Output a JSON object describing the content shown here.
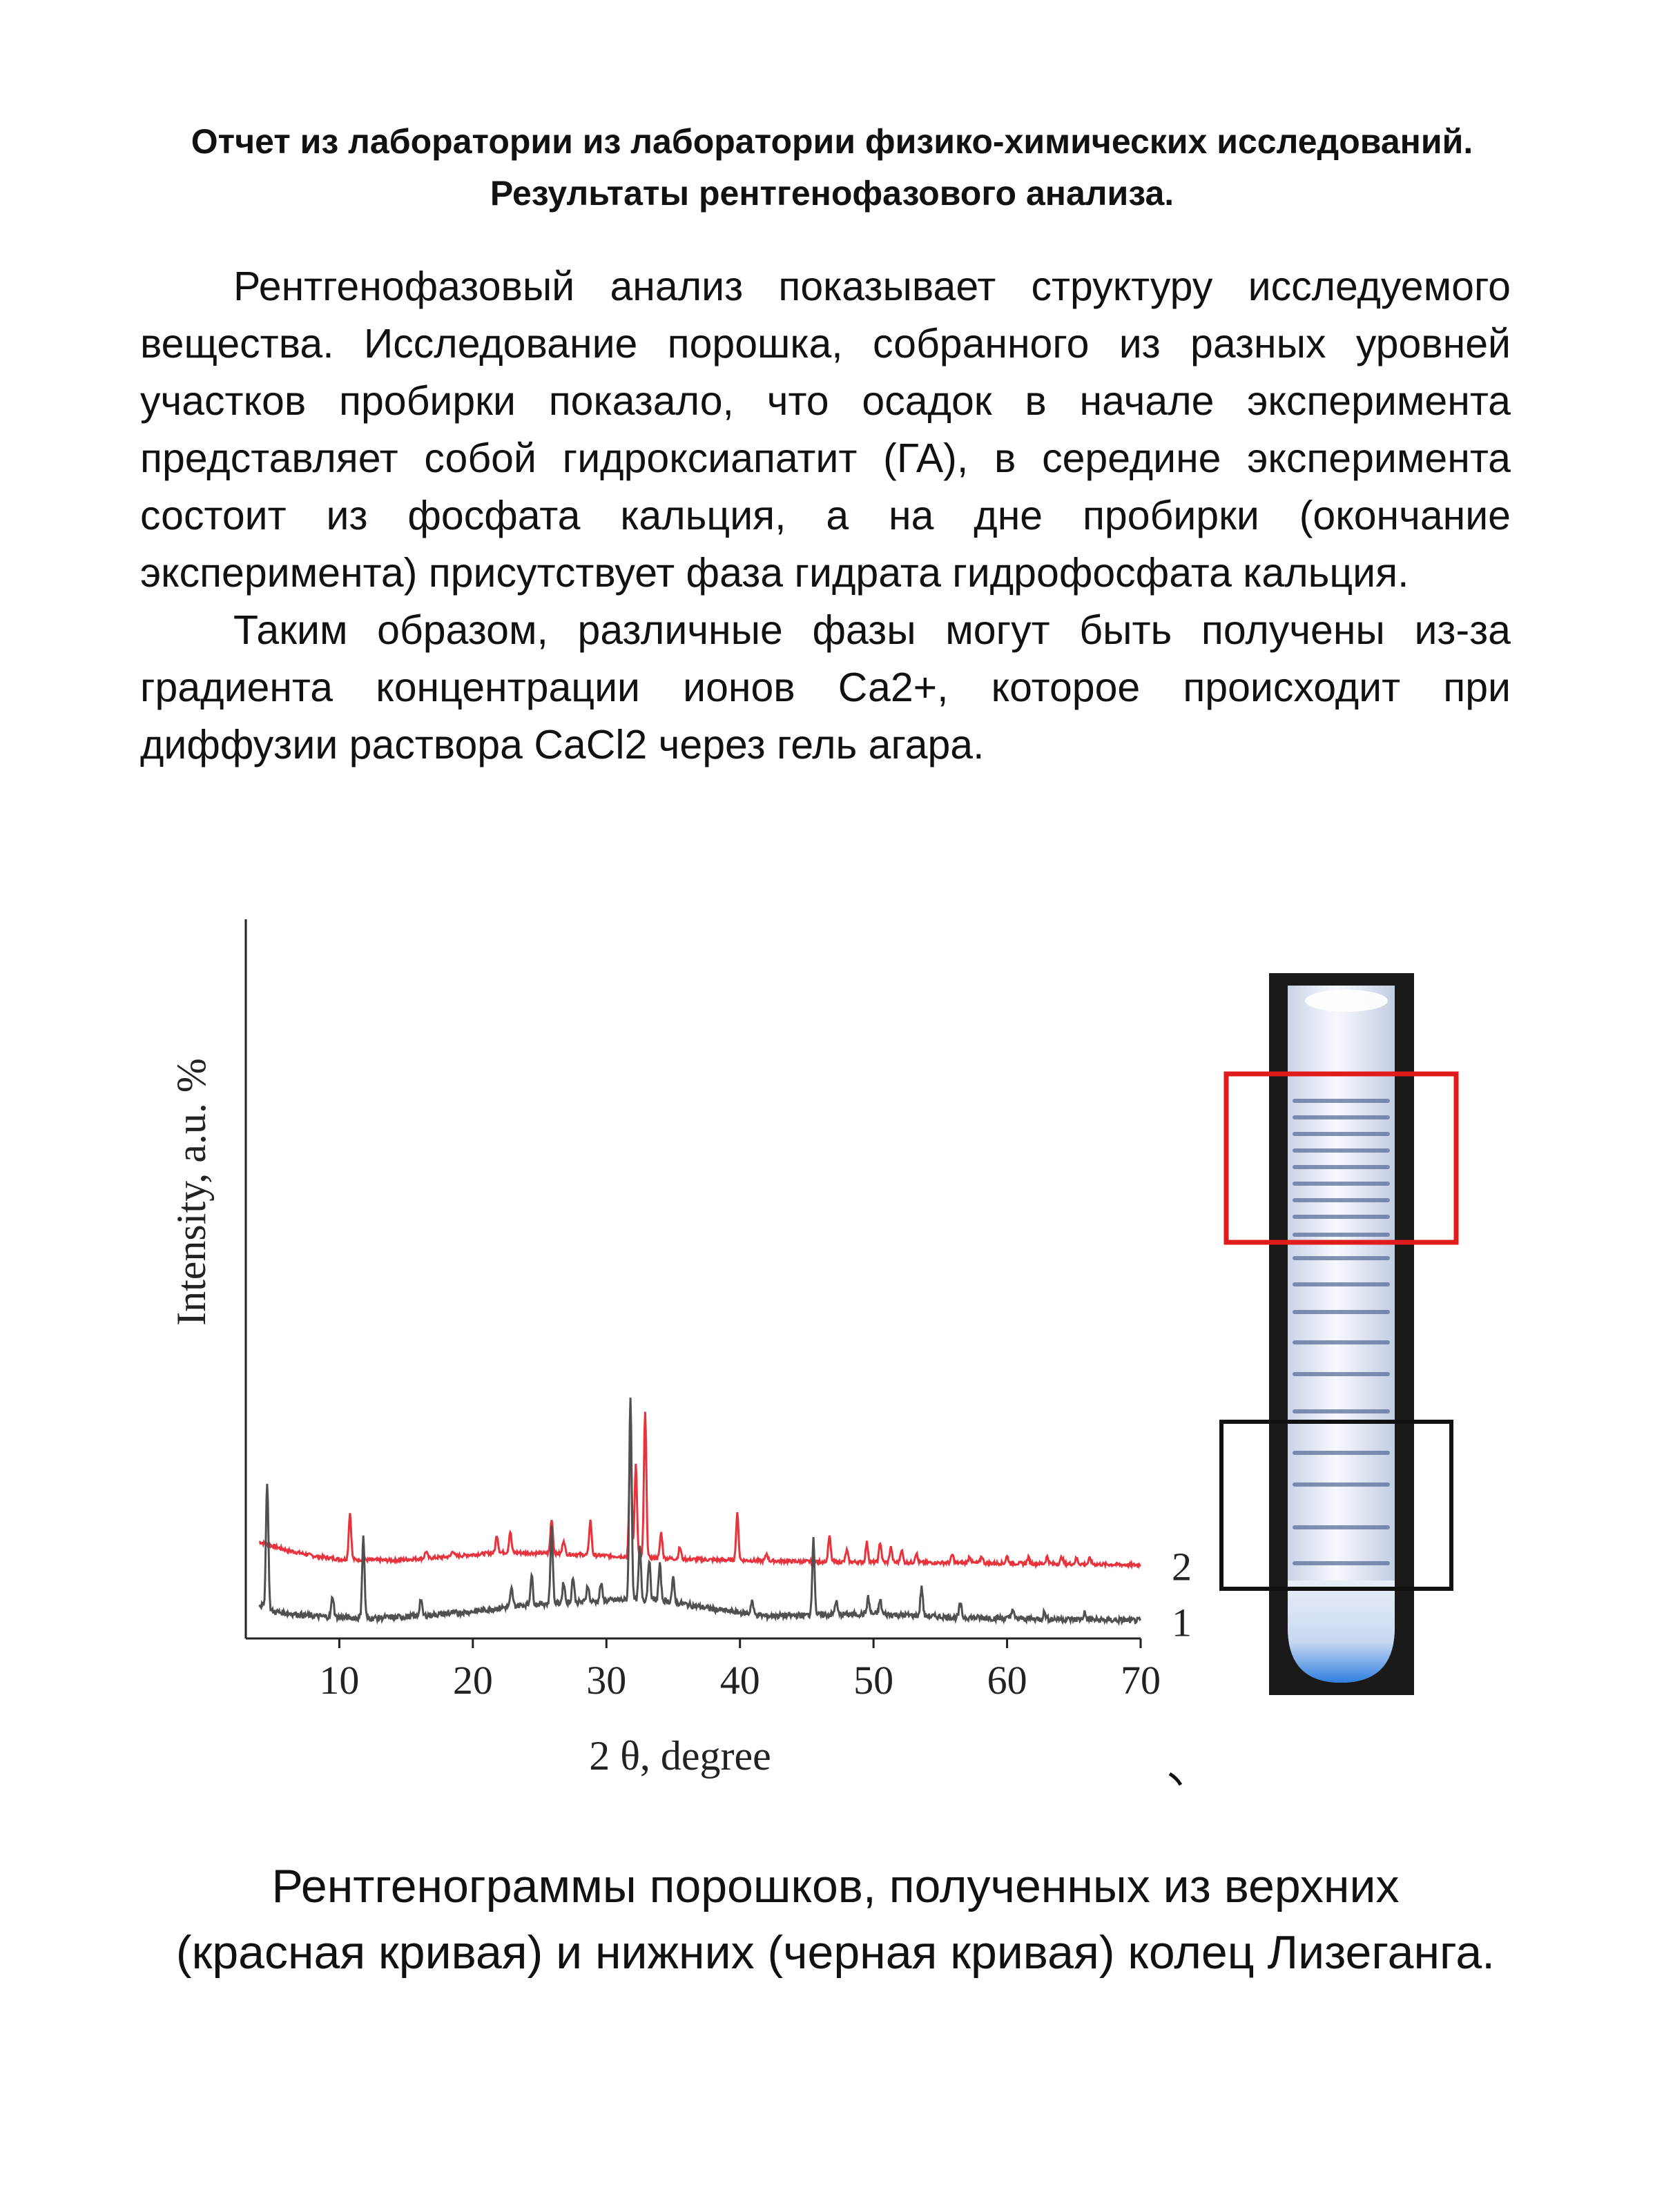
{
  "header": {
    "title_line1": "Отчет из лаборатории из лаборатории физико-химических исследований.",
    "title_line2": "Результаты рентгенофазового анализа."
  },
  "body": {
    "paragraph1": "Рентгенофазовый анализ показывает структуру исследуемого вещества.  Исследование порошка, собранного из разных уровней участков пробирки показало, что осадок в начале эксперимента представляет собой гидроксиапатит (ГА), в середине эксперимента состоит из фосфата кальция, а на дне пробирки (окончание эксперимента) присутствует фаза гидрата гидрофосфата кальция.",
    "paragraph2": "Таким образом, различные фазы могут быть получены из-за градиента концентрации ионов Са2+, которое происходит при диффузии раствора CaCl2 через гель агара."
  },
  "chart_data": {
    "type": "line",
    "title": "",
    "xlabel": "2 θ, degree",
    "ylabel": "Intensity, a.u. %",
    "xlim": [
      3,
      70
    ],
    "xticks": [
      10,
      20,
      30,
      40,
      50,
      60,
      70
    ],
    "y_units": "arbitrary (stacked offset traces)",
    "grid": false,
    "series": [
      {
        "name": "2",
        "color": "#e8323c",
        "baseline": 56,
        "background": [
          [
            4,
            75
          ],
          [
            6,
            68
          ],
          [
            8,
            63
          ],
          [
            10,
            60
          ],
          [
            14,
            59
          ],
          [
            18,
            62
          ],
          [
            22,
            66
          ],
          [
            26,
            65
          ],
          [
            30,
            63
          ],
          [
            36,
            60
          ],
          [
            45,
            58
          ],
          [
            55,
            57
          ],
          [
            65,
            56
          ],
          [
            70,
            55
          ]
        ],
        "peaks": [
          [
            10.8,
            40
          ],
          [
            16.5,
            6
          ],
          [
            18.5,
            5
          ],
          [
            21.8,
            15
          ],
          [
            22.8,
            18
          ],
          [
            25.9,
            30
          ],
          [
            26.8,
            12
          ],
          [
            28.8,
            30
          ],
          [
            31.8,
            110
          ],
          [
            32.2,
            80
          ],
          [
            32.9,
            125
          ],
          [
            34.1,
            22
          ],
          [
            35.5,
            10
          ],
          [
            39.8,
            40
          ],
          [
            42,
            6
          ],
          [
            46.7,
            22
          ],
          [
            48,
            10
          ],
          [
            49.5,
            17
          ],
          [
            50.5,
            17
          ],
          [
            51.3,
            13
          ],
          [
            52.1,
            11
          ],
          [
            53.2,
            8
          ],
          [
            55.9,
            7
          ],
          [
            57.2,
            6
          ],
          [
            58.1,
            6
          ],
          [
            60,
            6
          ],
          [
            61.6,
            5
          ],
          [
            63,
            6
          ],
          [
            64.1,
            6
          ],
          [
            65.2,
            5
          ],
          [
            66.2,
            5
          ]
        ]
      },
      {
        "name": "1",
        "color": "#505050",
        "baseline": 0,
        "background": [
          [
            4,
            18
          ],
          [
            5,
            12
          ],
          [
            8,
            8
          ],
          [
            12,
            6
          ],
          [
            16,
            8
          ],
          [
            20,
            12
          ],
          [
            24,
            18
          ],
          [
            28,
            20
          ],
          [
            31,
            22
          ],
          [
            34,
            22
          ],
          [
            38,
            14
          ],
          [
            42,
            8
          ],
          [
            50,
            10
          ],
          [
            56,
            7
          ],
          [
            60,
            6
          ],
          [
            66,
            5
          ],
          [
            70,
            4
          ]
        ],
        "peaks": [
          [
            4.6,
            110
          ],
          [
            9.5,
            18
          ],
          [
            11.8,
            70
          ],
          [
            16.1,
            15
          ],
          [
            22.9,
            15
          ],
          [
            24.4,
            25
          ],
          [
            25.9,
            65
          ],
          [
            26.8,
            18
          ],
          [
            27.5,
            22
          ],
          [
            28.6,
            15
          ],
          [
            29.6,
            15
          ],
          [
            31.8,
            175
          ],
          [
            32.5,
            45
          ],
          [
            33.2,
            35
          ],
          [
            34,
            30
          ],
          [
            35,
            20
          ],
          [
            40.9,
            12
          ],
          [
            45.5,
            65
          ],
          [
            47.2,
            12
          ],
          [
            49.6,
            14
          ],
          [
            50.5,
            12
          ],
          [
            53.6,
            25
          ],
          [
            56.5,
            12
          ],
          [
            60.4,
            8
          ],
          [
            62.8,
            6
          ],
          [
            65.8,
            6
          ]
        ]
      }
    ]
  },
  "figure_photo": {
    "description_colors": {
      "frame_top": "#e01b1b",
      "frame_bottom": "#111111"
    }
  },
  "caption": {
    "line1": "Рентгенограммы порошков, полученных из верхних",
    "line2": "(красная кривая) и нижних (черная кривая) колец Лизеганга."
  }
}
